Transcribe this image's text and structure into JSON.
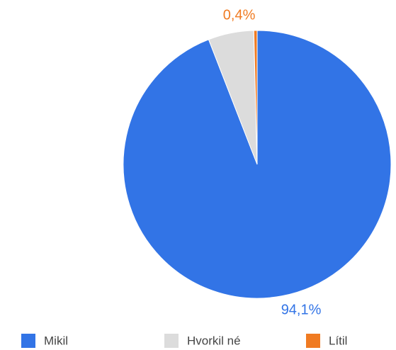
{
  "chart_data": {
    "type": "pie",
    "categories": [
      "Mikil",
      "Hvorkil né",
      "Lítil"
    ],
    "values": [
      94.1,
      5.5,
      0.4
    ],
    "value_labels": [
      "94,1%",
      null,
      "0,4%"
    ],
    "colors": [
      "#3274e6",
      "#dcdcdc",
      "#f07b22"
    ],
    "legend": "bottom"
  }
}
